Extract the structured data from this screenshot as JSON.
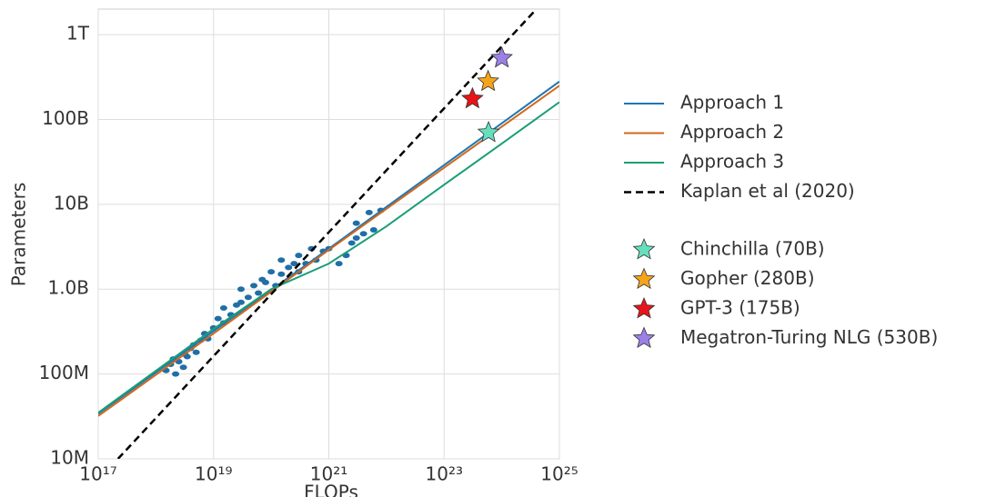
{
  "chart_data": {
    "type": "line",
    "xlabel": "FLOPs",
    "ylabel": "Parameters",
    "xscale": "log",
    "yscale": "log",
    "grid": true,
    "xlim": [
      1e+17,
      1e+25
    ],
    "ylim": [
      10000000.0,
      2000000000000.0
    ],
    "xticks": [
      {
        "value": 1e+17,
        "label": "10¹⁷"
      },
      {
        "value": 1e+19,
        "label": "10¹⁹"
      },
      {
        "value": 1e+21,
        "label": "10²¹"
      },
      {
        "value": 1e+23,
        "label": "10²³"
      },
      {
        "value": 1e+25,
        "label": "10²⁵"
      }
    ],
    "yticks": [
      {
        "value": 10000000.0,
        "label": "10M"
      },
      {
        "value": 100000000.0,
        "label": "100M"
      },
      {
        "value": 1000000000.0,
        "label": "1.0B"
      },
      {
        "value": 10000000000.0,
        "label": "10B"
      },
      {
        "value": 100000000000.0,
        "label": "100B"
      },
      {
        "value": 1000000000000.0,
        "label": "1T"
      }
    ],
    "points": {
      "color": "#1f6fa5",
      "x": [
        1.5e+18,
        1.8e+18,
        2e+18,
        2.2e+18,
        2.5e+18,
        3e+18,
        3.2e+18,
        3.5e+18,
        4e+18,
        4.5e+18,
        5e+18,
        6e+18,
        7e+18,
        8e+18,
        1e+19,
        1.2e+19,
        1.5e+19,
        1.5e+19,
        2e+19,
        2.5e+19,
        3e+19,
        3e+19,
        4e+19,
        5e+19,
        6e+19,
        7e+19,
        8e+19,
        1e+20,
        1.2e+20,
        1.5e+20,
        1.5e+20,
        2e+20,
        2.5e+20,
        3e+20,
        3e+20,
        4e+20,
        5e+20,
        6e+20,
        8e+20,
        1e+21,
        1.5e+21,
        2e+21,
        2.5e+21,
        3e+21,
        3e+21,
        4e+21,
        5e+21,
        6e+21,
        8e+21
      ],
      "values": [
        110000000.0,
        130000000.0,
        150000000.0,
        100000000.0,
        140000000.0,
        120000000.0,
        170000000.0,
        160000000.0,
        200000000.0,
        220000000.0,
        180000000.0,
        250000000.0,
        300000000.0,
        260000000.0,
        350000000.0,
        450000000.0,
        600000000.0,
        400000000.0,
        500000000.0,
        650000000.0,
        700000000.0,
        1000000000.0,
        800000000.0,
        1100000000.0,
        900000000.0,
        1300000000.0,
        1200000000.0,
        1600000000.0,
        1100000000.0,
        1500000000.0,
        2200000000.0,
        1800000000.0,
        2000000000.0,
        2500000000.0,
        1600000000.0,
        2000000000.0,
        3000000000.0,
        2200000000.0,
        2800000000.0,
        3000000000.0,
        2000000000.0,
        2500000000.0,
        3500000000.0,
        4000000000.0,
        6000000000.0,
        4500000000.0,
        8000000000.0,
        5000000000.0,
        8500000000.0
      ]
    },
    "series": [
      {
        "name": "Approach 1",
        "color": "#1f77b4",
        "x": [
          1e+17,
          1e+19,
          1e+21,
          1e+23,
          1e+25
        ],
        "values": [
          34000000.0,
          320000000.0,
          3000000000.0,
          29000000000.0,
          280000000000.0
        ]
      },
      {
        "name": "Approach 2",
        "color": "#d0681a",
        "x": [
          1e+17,
          1e+19,
          1e+21,
          1e+23,
          1e+25
        ],
        "values": [
          32000000.0,
          300000000.0,
          2900000000.0,
          27000000000.0,
          250000000000.0
        ]
      },
      {
        "name": "Approach 3",
        "color": "#1a9e77",
        "x": [
          1e+17,
          1e+19,
          1e+20,
          1e+21,
          1e+22,
          1e+23,
          1e+24,
          1e+25
        ],
        "values": [
          35000000.0,
          340000000.0,
          1000000000.0,
          2000000000.0,
          5500000000.0,
          17000000000.0,
          52000000000.0,
          160000000000.0
        ]
      },
      {
        "name": "Kaplan et al (2020)",
        "color": "#000000",
        "dashed": true,
        "x": [
          2.2e+17,
          4e+24
        ],
        "values": [
          10000000.0,
          2000000000000.0
        ]
      }
    ],
    "markers": [
      {
        "name": "Chinchilla (70B)",
        "color": "#66dfbf",
        "x": 5.9e+23,
        "value": 70000000000.0
      },
      {
        "name": "Gopher (280B)",
        "color": "#f5a41a",
        "x": 5.8e+23,
        "value": 280000000000.0
      },
      {
        "name": "GPT-3 (175B)",
        "color": "#e8141a",
        "x": 3.1e+23,
        "value": 175000000000.0
      },
      {
        "name": "Megatron-Turing NLG (530B)",
        "color": "#9b80e6",
        "x": 1e+24,
        "value": 530000000000.0
      }
    ]
  }
}
